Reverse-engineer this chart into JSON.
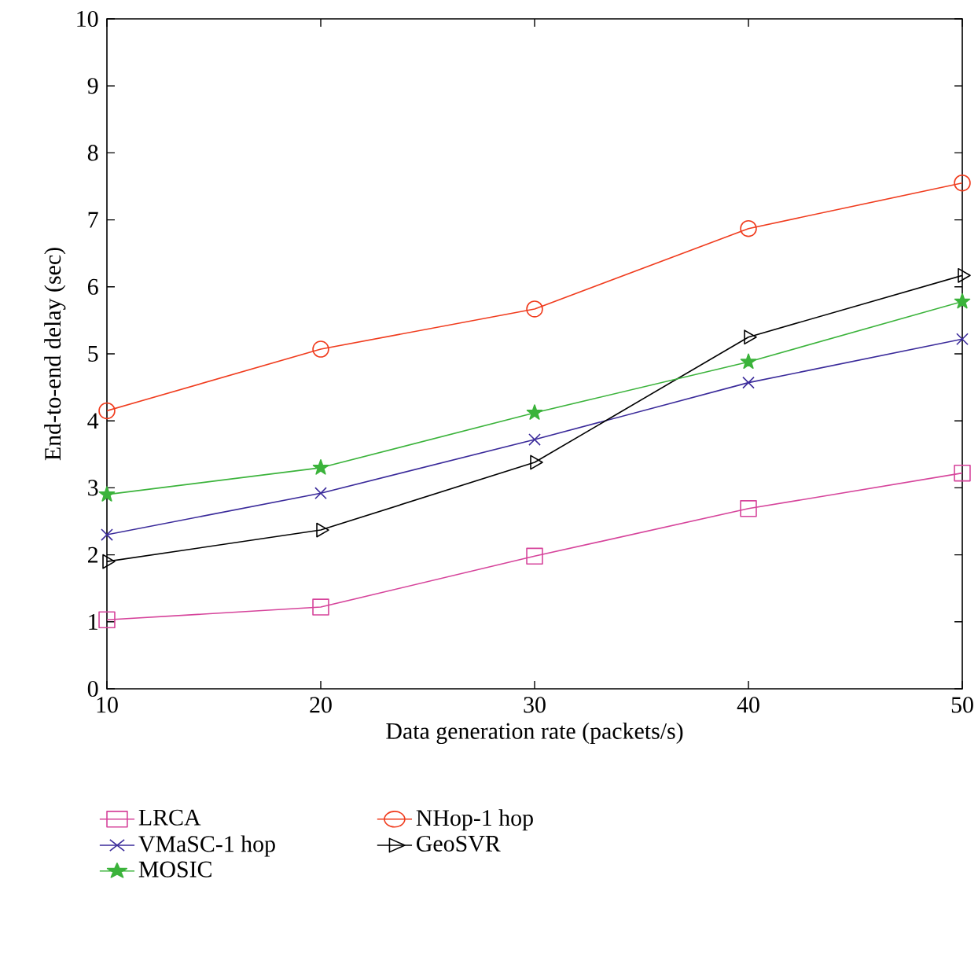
{
  "chart_data": {
    "type": "line",
    "xlabel": "Data generation rate (packets/s)",
    "ylabel": "End-to-end delay (sec)",
    "x": [
      10,
      20,
      30,
      40,
      50
    ],
    "xlim": [
      10,
      50
    ],
    "xticks": [
      10,
      20,
      30,
      40,
      50
    ],
    "ylim": [
      0,
      10
    ],
    "yticks": [
      0,
      1,
      2,
      3,
      4,
      5,
      6,
      7,
      8,
      9,
      10
    ],
    "grid": false,
    "legend": "bottom",
    "line_style": "solid",
    "series": [
      {
        "name": "LRCA",
        "color": "#d6449b",
        "marker": "square",
        "values": [
          1.03,
          1.22,
          1.98,
          2.69,
          3.22
        ]
      },
      {
        "name": "VMaSC-1 hop",
        "color": "#3a2a9a",
        "marker": "cross",
        "values": [
          2.3,
          2.92,
          3.72,
          4.57,
          5.22
        ]
      },
      {
        "name": "MOSIC",
        "color": "#3bb33b",
        "marker": "star",
        "values": [
          2.9,
          3.3,
          4.12,
          4.88,
          5.78
        ]
      },
      {
        "name": "NHop-1 hop",
        "color": "#f03c1e",
        "marker": "circle",
        "values": [
          4.15,
          5.07,
          5.67,
          6.87,
          7.55
        ]
      },
      {
        "name": "GeoSVR",
        "color": "#000000",
        "marker": "triangle",
        "values": [
          1.9,
          2.37,
          3.38,
          5.25,
          6.17
        ]
      }
    ]
  }
}
